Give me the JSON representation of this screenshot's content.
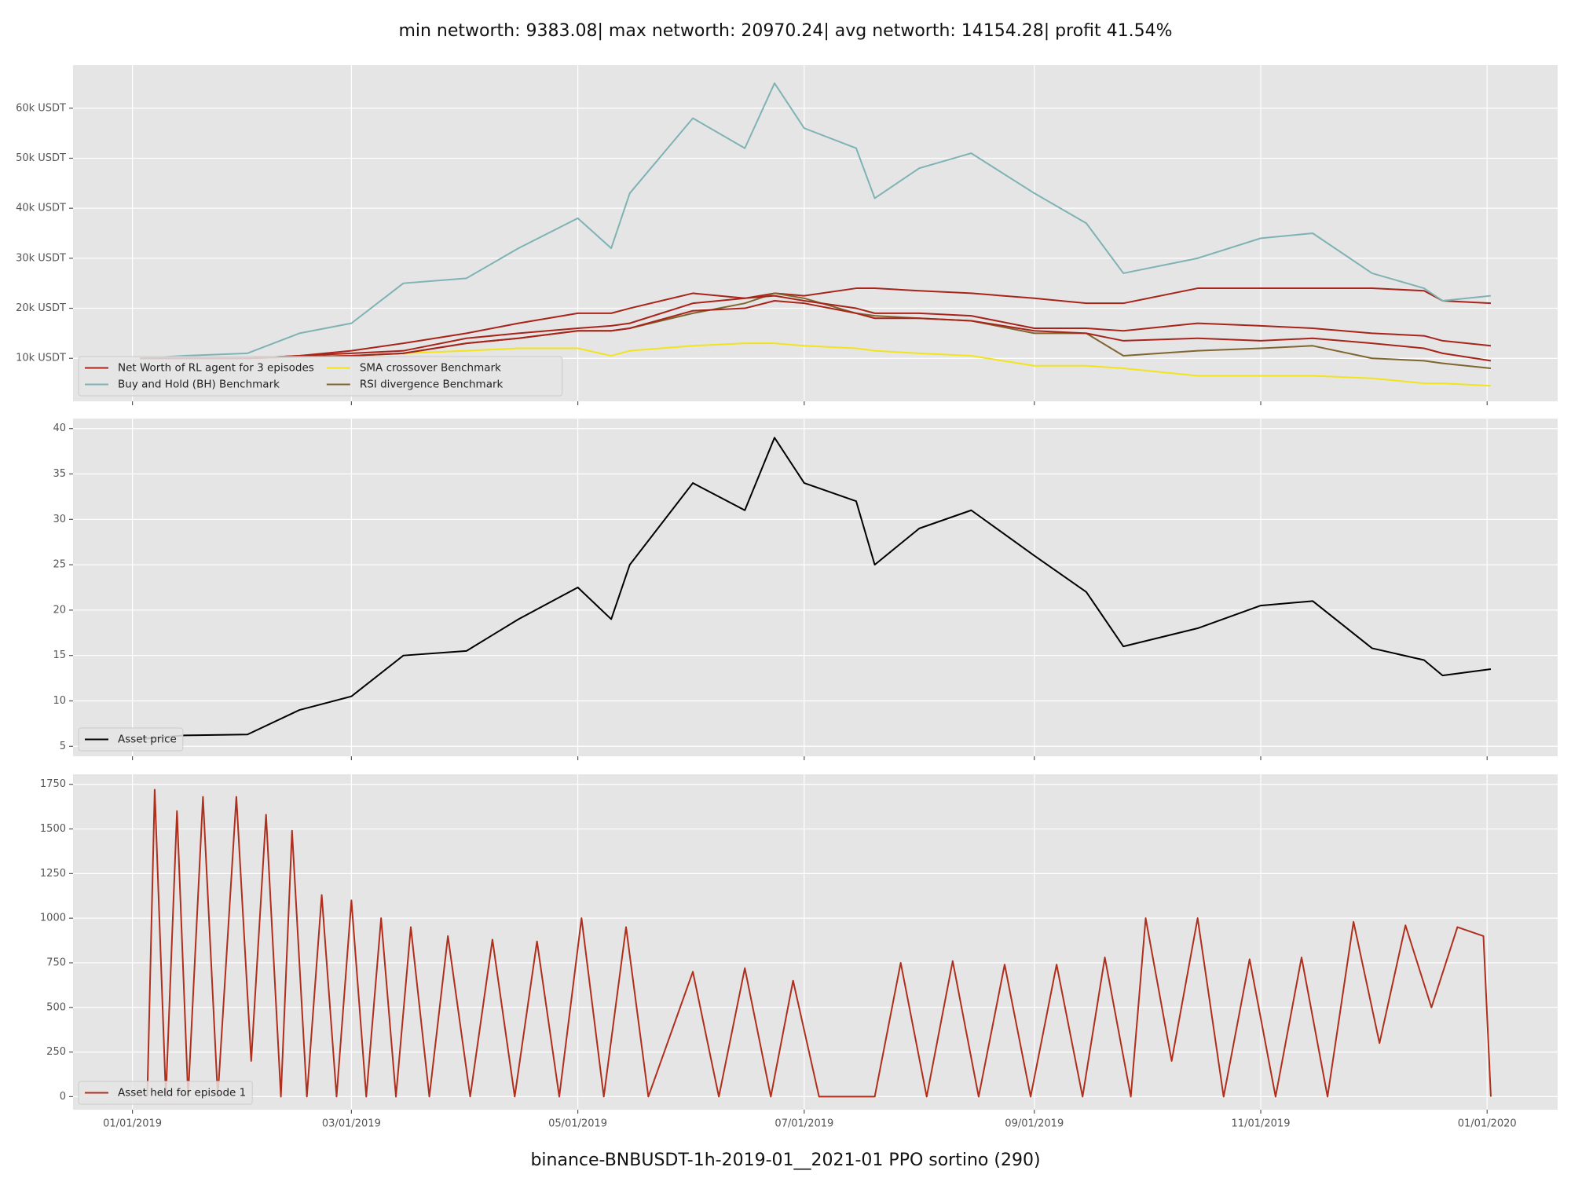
{
  "title": "min networth: 9383.08| max networth: 20970.24| avg networth: 14154.28| profit 41.54%",
  "xlabel": "binance-BNBUSDT-1h-2019-01__2021-01 PPO sortino  (290)",
  "xlim": [
    "12/16/2018",
    "01/20/2020"
  ],
  "xticks": [
    "01/01/2019",
    "03/01/2019",
    "05/01/2019",
    "07/01/2019",
    "09/01/2019",
    "11/01/2019",
    "01/01/2020"
  ],
  "grid": true,
  "chart_data": [
    {
      "type": "line",
      "legend": "lower left",
      "legend_ncol": 2,
      "x": [
        "01/03/2019",
        "01/15/2019",
        "02/01/2019",
        "02/15/2019",
        "03/01/2019",
        "03/15/2019",
        "04/01/2019",
        "04/15/2019",
        "05/01/2019",
        "05/10/2019",
        "05/15/2019",
        "06/01/2019",
        "06/15/2019",
        "06/23/2019",
        "07/01/2019",
        "07/15/2019",
        "07/20/2019",
        "08/01/2019",
        "08/15/2019",
        "09/01/2019",
        "09/15/2019",
        "09/25/2019",
        "10/15/2019",
        "11/01/2019",
        "11/15/2019",
        "12/01/2019",
        "12/15/2019",
        "12/20/2019",
        "01/02/2020"
      ],
      "ylim": [
        1400,
        68600
      ],
      "yticks": [
        {
          "value": 10000,
          "label": "10k USDT"
        },
        {
          "value": 20000,
          "label": "20k USDT"
        },
        {
          "value": 30000,
          "label": "30k USDT"
        },
        {
          "value": 40000,
          "label": "40k USDT"
        },
        {
          "value": 50000,
          "label": "50k USDT"
        },
        {
          "value": 60000,
          "label": "60k USDT"
        }
      ],
      "series": [
        {
          "name": "Net Worth of RL agent for 3 episodes",
          "color": "#a8231a",
          "values": [
            10000,
            10000,
            10000,
            10500,
            11500,
            13000,
            15000,
            17000,
            19000,
            19000,
            20000,
            23000,
            22000,
            23000,
            22500,
            24000,
            24000,
            23500,
            23000,
            22000,
            21000,
            21000,
            24000,
            24000,
            24000,
            24000,
            23500,
            21500,
            21000
          ]
        },
        {
          "name": "Buy and Hold (BH) Benchmark",
          "color": "#7fb2b5",
          "values": [
            10000,
            10500,
            11000,
            15000,
            17000,
            25000,
            26000,
            32000,
            38000,
            32000,
            43000,
            58000,
            52000,
            65000,
            56000,
            52000,
            42000,
            48000,
            51000,
            43000,
            37000,
            27000,
            30000,
            34000,
            35000,
            27000,
            24000,
            21500,
            22500
          ]
        },
        {
          "name": "SMA crossover Benchmark",
          "color": "#f2e41a",
          "values": [
            10000,
            10000,
            10000,
            10300,
            10500,
            11000,
            11500,
            12000,
            12000,
            10500,
            11500,
            12500,
            13000,
            13000,
            12500,
            12000,
            11500,
            11000,
            10500,
            8500,
            8500,
            8000,
            6500,
            6500,
            6500,
            6000,
            5000,
            5000,
            4500
          ]
        },
        {
          "name": "RSI divergence Benchmark",
          "color": "#7f6530",
          "values": [
            10000,
            10000,
            10000,
            10300,
            10500,
            11000,
            13000,
            14000,
            15500,
            15500,
            16000,
            19000,
            21000,
            23000,
            22000,
            19000,
            18500,
            18000,
            17500,
            15000,
            15000,
            10500,
            11500,
            12000,
            12500,
            10000,
            9500,
            9000,
            8000
          ]
        },
        {
          "color": "#a8231a",
          "values": [
            10000,
            10000,
            10000,
            10500,
            11000,
            11500,
            14000,
            15000,
            16000,
            16500,
            17000,
            21000,
            22000,
            22500,
            21500,
            20000,
            19000,
            19000,
            18500,
            16000,
            16000,
            15500,
            17000,
            16500,
            16000,
            15000,
            14500,
            13500,
            12500
          ]
        },
        {
          "color": "#a8231a",
          "values": [
            10000,
            10000,
            10000,
            10300,
            10500,
            11000,
            13000,
            14000,
            15500,
            15500,
            16000,
            19500,
            20000,
            21500,
            21000,
            19000,
            18000,
            18000,
            17500,
            15500,
            15000,
            13500,
            14000,
            13500,
            14000,
            13000,
            12000,
            11000,
            9500
          ]
        }
      ]
    },
    {
      "type": "line",
      "legend": "lower left",
      "legend_ncol": 1,
      "x": [
        "01/03/2019",
        "01/15/2019",
        "02/01/2019",
        "02/15/2019",
        "03/01/2019",
        "03/15/2019",
        "04/01/2019",
        "04/15/2019",
        "05/01/2019",
        "05/10/2019",
        "05/15/2019",
        "06/01/2019",
        "06/15/2019",
        "06/23/2019",
        "07/01/2019",
        "07/15/2019",
        "07/20/2019",
        "08/01/2019",
        "08/15/2019",
        "09/01/2019",
        "09/15/2019",
        "09/25/2019",
        "10/15/2019",
        "11/01/2019",
        "11/15/2019",
        "12/01/2019",
        "12/15/2019",
        "12/20/2019",
        "01/02/2020"
      ],
      "ylim": [
        3.9,
        41.1
      ],
      "yticks": [
        5,
        10,
        15,
        20,
        25,
        30,
        35,
        40
      ],
      "series": [
        {
          "name": "Asset price",
          "color": "#000000",
          "values": [
            5.8,
            6.2,
            6.3,
            9,
            10.5,
            15,
            15.5,
            19,
            22.5,
            19,
            25,
            34,
            31,
            39,
            34,
            32,
            25,
            29,
            31,
            26,
            22,
            16,
            18,
            20.5,
            21,
            15.8,
            14.5,
            12.8,
            13.5
          ]
        }
      ]
    },
    {
      "type": "line",
      "legend": "lower left",
      "legend_ncol": 1,
      "x": [
        "01/05/2019",
        "01/07/2019",
        "01/10/2019",
        "01/13/2019",
        "01/16/2019",
        "01/20/2019",
        "01/24/2019",
        "01/29/2019",
        "02/02/2019",
        "02/06/2019",
        "02/10/2019",
        "02/13/2019",
        "02/17/2019",
        "02/21/2019",
        "02/25/2019",
        "03/01/2019",
        "03/05/2019",
        "03/09/2019",
        "03/13/2019",
        "03/17/2019",
        "03/22/2019",
        "03/27/2019",
        "04/02/2019",
        "04/08/2019",
        "04/14/2019",
        "04/20/2019",
        "04/26/2019",
        "05/02/2019",
        "05/08/2019",
        "05/14/2019",
        "05/20/2019",
        "06/01/2019",
        "06/08/2019",
        "06/15/2019",
        "06/22/2019",
        "06/28/2019",
        "07/05/2019",
        "07/20/2019",
        "07/27/2019",
        "08/03/2019",
        "08/10/2019",
        "08/17/2019",
        "08/24/2019",
        "08/31/2019",
        "09/07/2019",
        "09/14/2019",
        "09/20/2019",
        "09/27/2019",
        "10/01/2019",
        "10/08/2019",
        "10/15/2019",
        "10/22/2019",
        "10/29/2019",
        "11/05/2019",
        "11/12/2019",
        "11/19/2019",
        "11/26/2019",
        "12/03/2019",
        "12/10/2019",
        "12/17/2019",
        "12/24/2019",
        "12/31/2019",
        "01/02/2020"
      ],
      "ylim": [
        -73,
        1806
      ],
      "yticks": [
        0,
        250,
        500,
        750,
        1000,
        1250,
        1500,
        1750
      ],
      "series": [
        {
          "name": "Asset held for episode 1",
          "color": "#b02e1c",
          "values": [
            0,
            1720,
            0,
            1600,
            0,
            1680,
            0,
            1680,
            200,
            1580,
            0,
            1490,
            0,
            1130,
            0,
            1100,
            0,
            1000,
            0,
            950,
            0,
            900,
            0,
            880,
            0,
            870,
            0,
            1000,
            0,
            950,
            0,
            700,
            0,
            720,
            0,
            650,
            0,
            0,
            750,
            0,
            760,
            0,
            740,
            0,
            740,
            0,
            780,
            0,
            1000,
            200,
            1000,
            0,
            770,
            0,
            780,
            0,
            980,
            300,
            960,
            500,
            950,
            900,
            0
          ]
        }
      ]
    }
  ]
}
